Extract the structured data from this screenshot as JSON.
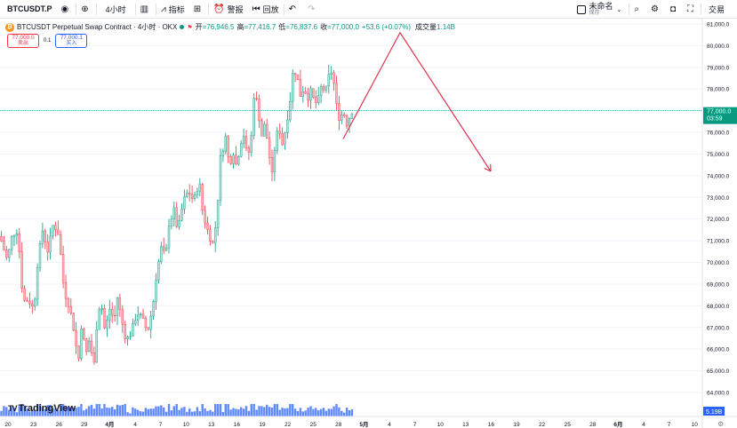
{
  "toolbar": {
    "symbol": "BTCUSDT.P",
    "interval": "4小时",
    "indicators": "指标",
    "alert": "警报",
    "replay": "回放",
    "layout_name": "未命名",
    "layout_sub": "保存",
    "trade": "交易",
    "icons": [
      "eye-icon",
      "plus-circle-icon",
      "candles-icon",
      "indicators-icon",
      "layout-grid-icon",
      "alarm-clock-icon",
      "replay-icon",
      "undo-icon",
      "redo-icon",
      "search-icon",
      "settings-icon",
      "camera-icon",
      "fullscreen-icon"
    ]
  },
  "legend": {
    "title": "BTCUSDT Perpetual Swap Contract · 4小时 · OKX",
    "open_k": "开",
    "open_v": "=76,946.5",
    "high_k": "高",
    "high_v": "=77,416.7",
    "low_k": "低",
    "low_v": "=76,837.6",
    "close_k": "收",
    "close_v": "=77,000.0",
    "change": "+53.6 (+0.07%)",
    "volume_k": "成交量",
    "volume_v": "1.14B"
  },
  "order": {
    "sell_price": "77,000.0",
    "sell_label": "卖出",
    "spread": "0.1",
    "buy_price": "77,000.1",
    "buy_label": "买入"
  },
  "price_axis": {
    "ticks": [
      "81,000.0",
      "80,000.0",
      "79,000.0",
      "78,000.0",
      "77,000.0",
      "76,000.0",
      "75,000.0",
      "74,000.0",
      "73,000.0",
      "72,000.0",
      "71,000.0",
      "70,000.0",
      "69,000.0",
      "68,000.0",
      "67,000.0",
      "66,000.0",
      "65,000.0",
      "64,000.0"
    ],
    "current_price": "77,000.0",
    "countdown": "03:59",
    "volume_label": "5.19B"
  },
  "time_axis": {
    "ticks": [
      "20",
      "23",
      "26",
      "29",
      "4月",
      "4",
      "7",
      "10",
      "13",
      "16",
      "19",
      "22",
      "25",
      "28",
      "5月",
      "4",
      "7",
      "10",
      "13",
      "16",
      "19",
      "22",
      "25",
      "28",
      "6月",
      "4",
      "7",
      "10"
    ]
  },
  "watermark": "TradingView",
  "colors": {
    "up": "#089981",
    "down": "#f23645",
    "up_candle": "#b5e1dc",
    "down_candle": "#f7b5bb",
    "volume": "#2962ff",
    "projection": "#e0344e",
    "current": "#089981"
  },
  "chart_data": {
    "type": "candlestick",
    "interval": "4h",
    "ylim": [
      63700,
      81500
    ],
    "shape_points": [
      [
        0,
        71200
      ],
      [
        8,
        70100
      ],
      [
        14,
        71300
      ],
      [
        20,
        71500
      ],
      [
        26,
        68200
      ],
      [
        32,
        68300
      ],
      [
        38,
        67800
      ],
      [
        42,
        69900
      ],
      [
        48,
        71500
      ],
      [
        54,
        70500
      ],
      [
        60,
        71800
      ],
      [
        66,
        71300
      ],
      [
        72,
        68700
      ],
      [
        78,
        68000
      ],
      [
        84,
        66700
      ],
      [
        88,
        65300
      ],
      [
        92,
        67400
      ],
      [
        96,
        65600
      ],
      [
        100,
        66400
      ],
      [
        106,
        65300
      ],
      [
        110,
        67800
      ],
      [
        114,
        68100
      ],
      [
        118,
        66800
      ],
      [
        124,
        68000
      ],
      [
        128,
        67200
      ],
      [
        132,
        68400
      ],
      [
        138,
        67100
      ],
      [
        142,
        66400
      ],
      [
        148,
        66800
      ],
      [
        154,
        67700
      ],
      [
        160,
        67400
      ],
      [
        166,
        66800
      ],
      [
        172,
        68000
      ],
      [
        176,
        69500
      ],
      [
        182,
        70800
      ],
      [
        186,
        70100
      ],
      [
        190,
        71800
      ],
      [
        196,
        72400
      ],
      [
        200,
        71400
      ],
      [
        206,
        72800
      ],
      [
        212,
        73300
      ],
      [
        218,
        72800
      ],
      [
        224,
        73800
      ],
      [
        228,
        72300
      ],
      [
        234,
        71400
      ],
      [
        240,
        70800
      ],
      [
        244,
        72300
      ],
      [
        248,
        74800
      ],
      [
        254,
        75800
      ],
      [
        258,
        74400
      ],
      [
        262,
        75200
      ],
      [
        266,
        74400
      ],
      [
        270,
        75500
      ],
      [
        274,
        75900
      ],
      [
        278,
        74900
      ],
      [
        282,
        75300
      ],
      [
        286,
        77900
      ],
      [
        290,
        77200
      ],
      [
        294,
        75800
      ],
      [
        298,
        76400
      ],
      [
        302,
        75200
      ],
      [
        306,
        74000
      ],
      [
        310,
        75700
      ],
      [
        314,
        76200
      ],
      [
        318,
        75400
      ],
      [
        322,
        76400
      ],
      [
        326,
        77400
      ],
      [
        330,
        79000
      ],
      [
        334,
        78600
      ],
      [
        338,
        77700
      ],
      [
        342,
        78100
      ],
      [
        346,
        77600
      ],
      [
        350,
        77900
      ],
      [
        354,
        77300
      ],
      [
        358,
        77500
      ],
      [
        362,
        78200
      ],
      [
        366,
        77800
      ],
      [
        370,
        78600
      ],
      [
        374,
        78900
      ],
      [
        378,
        77300
      ],
      [
        382,
        76600
      ],
      [
        386,
        77000
      ],
      [
        390,
        76400
      ],
      [
        394,
        76800
      ],
      [
        396,
        77000
      ]
    ],
    "current_price": 77000.0,
    "projection_path": [
      [
        386,
        75700
      ],
      [
        450,
        80600
      ],
      [
        552,
        74200
      ]
    ]
  }
}
